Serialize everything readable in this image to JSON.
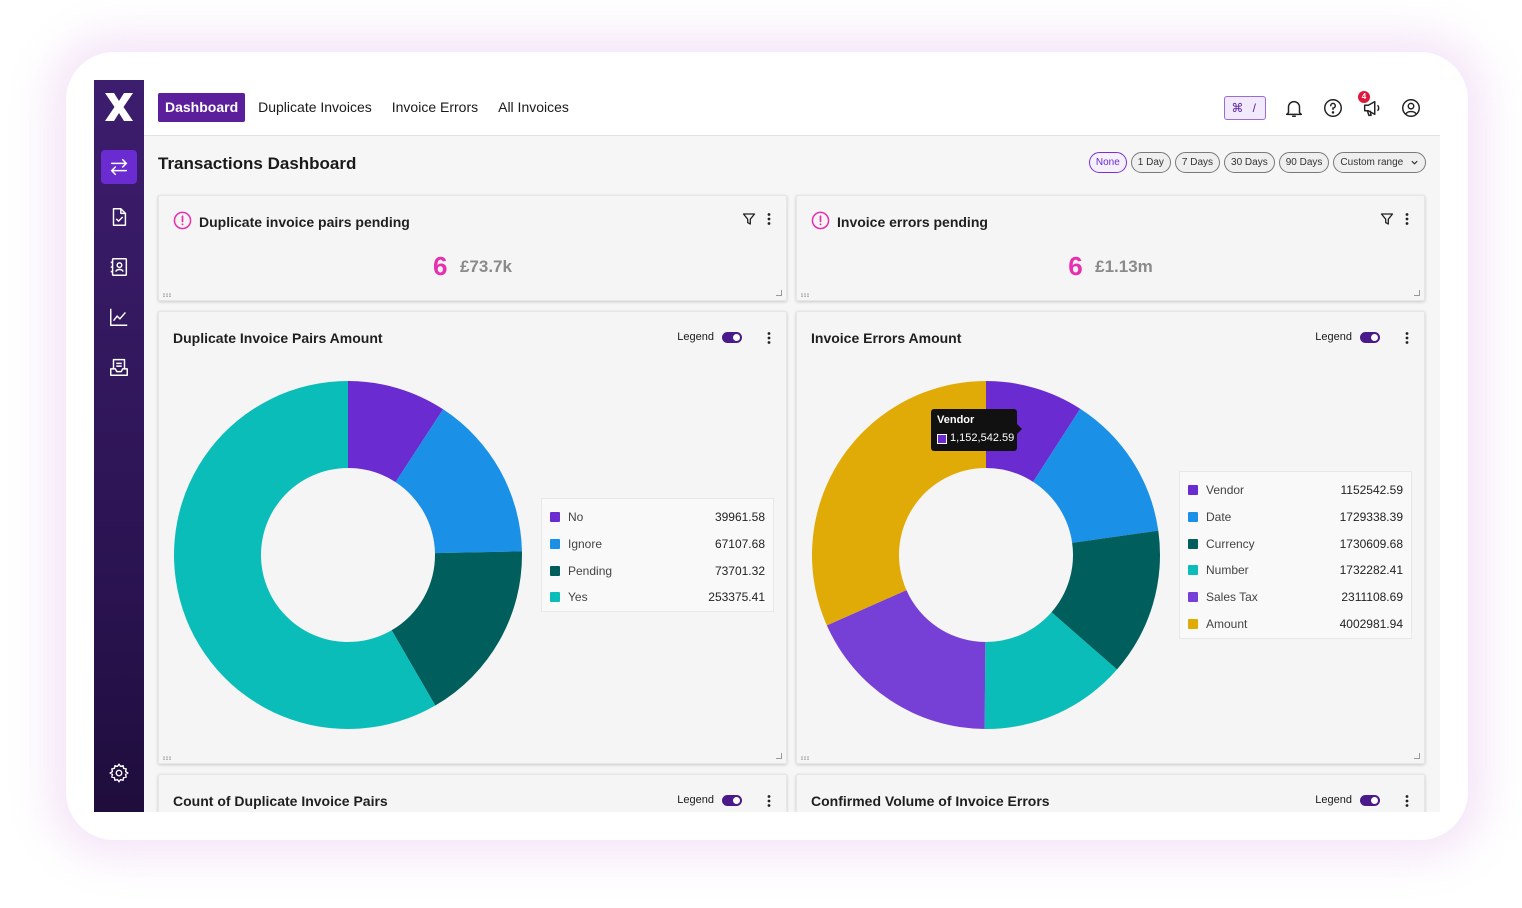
{
  "brand": {
    "accent": "#5b1f9c",
    "kpi_color": "#e82fb0"
  },
  "nav": {
    "tabs": [
      {
        "label": "Dashboard",
        "active": true
      },
      {
        "label": "Duplicate Invoices",
        "active": false
      },
      {
        "label": "Invoice Errors",
        "active": false
      },
      {
        "label": "All Invoices",
        "active": false
      }
    ],
    "shortcut": "⌘ /",
    "notification_count": "4",
    "icons": [
      "bell-icon",
      "help-icon",
      "announcement-icon",
      "user-icon"
    ]
  },
  "sidebar": {
    "items": [
      {
        "icon": "transactions-icon",
        "active": true
      },
      {
        "icon": "document-check-icon",
        "active": false
      },
      {
        "icon": "contacts-icon",
        "active": false
      },
      {
        "icon": "line-chart-icon",
        "active": false
      },
      {
        "icon": "inbox-icon",
        "active": false
      }
    ],
    "bottom_icon": "settings-icon"
  },
  "page": {
    "title": "Transactions Dashboard",
    "ranges": [
      {
        "label": "None",
        "active": true
      },
      {
        "label": "1 Day",
        "active": false
      },
      {
        "label": "7 Days",
        "active": false
      },
      {
        "label": "30 Days",
        "active": false
      },
      {
        "label": "90 Days",
        "active": false
      },
      {
        "label": "Custom range",
        "active": false
      }
    ]
  },
  "kpis": [
    {
      "title": "Duplicate invoice pairs pending",
      "count": "6",
      "amount": "£73.7k"
    },
    {
      "title": "Invoice errors pending",
      "count": "6",
      "amount": "£1.13m"
    }
  ],
  "legend_label": "Legend",
  "chart_data": [
    {
      "type": "pie",
      "title": "Duplicate Invoice Pairs Amount",
      "donut": true,
      "legend_placement": "right",
      "categories": [
        "No",
        "Ignore",
        "Pending",
        "Yes"
      ],
      "values": [
        39961.58,
        67107.68,
        73701.32,
        253375.41
      ],
      "value_labels": [
        "39961.58",
        "67107.68",
        "73701.32",
        "253375.41"
      ],
      "colors": [
        "#6a2bd0",
        "#1a90e6",
        "#005f5c",
        "#0bbdb8"
      ]
    },
    {
      "type": "pie",
      "title": "Invoice Errors Amount",
      "donut": true,
      "legend_placement": "right",
      "categories": [
        "Vendor",
        "Date",
        "Currency",
        "Number",
        "Sales Tax",
        "Amount"
      ],
      "values": [
        1152542.59,
        1729338.39,
        1730609.68,
        1732282.41,
        2311108.69,
        4002981.94
      ],
      "value_labels": [
        "1152542.59",
        "1729338.39",
        "1730609.68",
        "1732282.41",
        "2311108.69",
        "4002981.94"
      ],
      "colors": [
        "#6a2bd0",
        "#1a90e6",
        "#005f5c",
        "#0bbdb8",
        "#7640d6",
        "#e0ab06"
      ],
      "tooltip": {
        "title": "Vendor",
        "value": "1,152,542.59"
      }
    }
  ],
  "lower_cards": [
    {
      "title": "Count of Duplicate Invoice Pairs"
    },
    {
      "title": "Confirmed Volume of Invoice Errors"
    }
  ]
}
